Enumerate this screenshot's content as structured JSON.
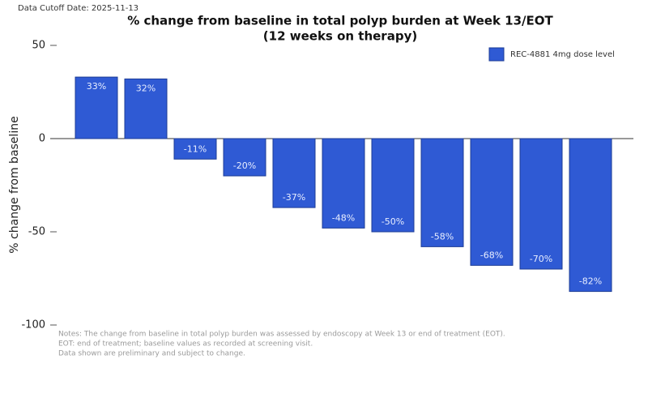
{
  "chart_data": {
    "type": "bar",
    "cutoff": "Data Cutoff Date: 2025-11-13",
    "title": "% change from baseline in total polyp burden at Week 13/EOT",
    "subtitle": "(12 weeks on therapy)",
    "ylabel": "% change from baseline",
    "categories": [
      null,
      null,
      null,
      null,
      null,
      null,
      null,
      null,
      null,
      null,
      null
    ],
    "series": [
      {
        "name": "REC-4881 4mg dose level",
        "color": "#2f5ad4",
        "values": [
          33,
          32,
          -11,
          -20,
          -37,
          -48,
          -50,
          -58,
          -68,
          -70,
          -82
        ],
        "value_labels": [
          "33%",
          "32%",
          "-11%",
          "-20%",
          "-37%",
          "-48%",
          "-50%",
          "-58%",
          "-68%",
          "-70%",
          "-82%"
        ]
      }
    ],
    "ylim": [
      -100,
      50
    ],
    "yticks": [
      -100,
      -50,
      0,
      50
    ],
    "notes": [
      "Notes: The change from baseline in total polyp burden was assessed by endoscopy at Week 13 or end of treatment (EOT).",
      "EOT: end of treatment; baseline values as recorded at screening visit.",
      "Data shown are preliminary and subject to change."
    ]
  }
}
